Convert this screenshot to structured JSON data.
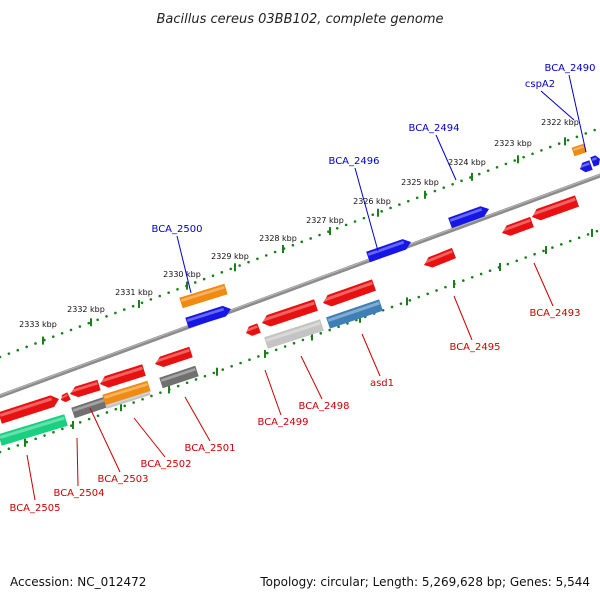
{
  "title": "Bacillus cereus 03BB102, complete genome",
  "footer": {
    "accession": "Accession: NC_012472",
    "info": "Topology: circular; Length: 5,269,628 bp; Genes: 5,544"
  },
  "colors": {
    "forward_label": "#0000cc",
    "reverse_label": "#cc0000",
    "ruler": "#1a7f1a",
    "backbone": "#8c8c8c",
    "red": "#e81010",
    "blue": "#1616e6",
    "orange": "#f08a10",
    "gray": "#707070",
    "lightgray": "#c4c4c4",
    "steelblue": "#3f7fb8",
    "green": "#18d080"
  },
  "ruler_labels": [
    "2333 kbp",
    "2332 kbp",
    "2331 kbp",
    "2330 kbp",
    "2329 kbp",
    "2328 kbp",
    "2327 kbp",
    "2326 kbp",
    "2325 kbp",
    "2324 kbp",
    "2323 kbp",
    "2322 kbp"
  ],
  "forward_labels": [
    "BCA_2500",
    "BCA_2496",
    "BCA_2494",
    "cspA2",
    "BCA_2490"
  ],
  "reverse_labels": [
    "BCA_2505",
    "BCA_2504",
    "BCA_2503",
    "BCA_2502",
    "BCA_2501",
    "BCA_2499",
    "BCA_2498",
    "asd1",
    "BCA_2495",
    "BCA_2493"
  ]
}
